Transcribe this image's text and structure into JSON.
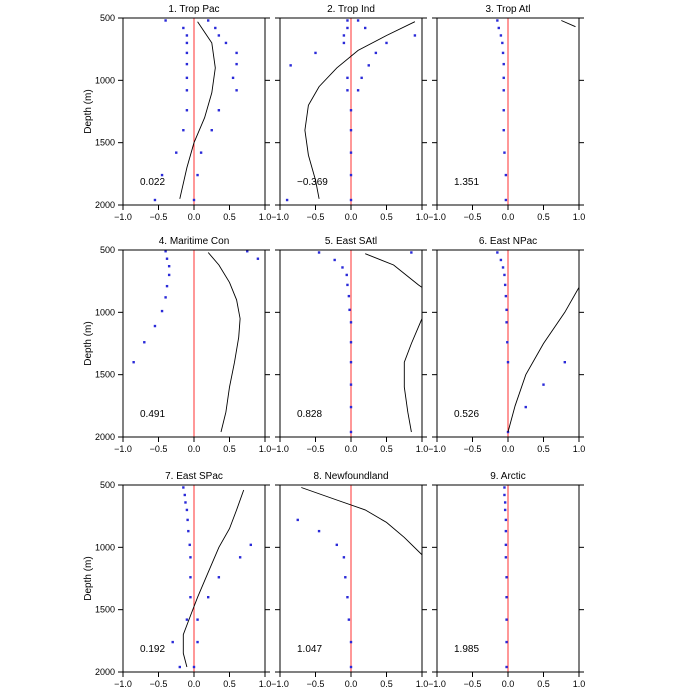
{
  "ylabel": "Depth (m)",
  "chart_data": [
    {
      "type": "scatter",
      "title": "1. Trop Pac",
      "annotation": "0.022",
      "xlim": [
        -1.0,
        1.0
      ],
      "ylim": [
        2000,
        500
      ],
      "x_ticks": [
        "−1.0",
        "−0.5",
        "0.0",
        "0.5",
        "1.0"
      ],
      "y_ticks": [
        "500",
        "1000",
        "1500",
        "2000"
      ],
      "points": [
        [
          -0.4,
          520
        ],
        [
          0.2,
          520
        ],
        [
          -0.15,
          580
        ],
        [
          0.3,
          580
        ],
        [
          -0.1,
          640
        ],
        [
          0.35,
          640
        ],
        [
          -0.1,
          700
        ],
        [
          0.45,
          700
        ],
        [
          -0.1,
          780
        ],
        [
          0.6,
          780
        ],
        [
          -0.1,
          870
        ],
        [
          0.6,
          870
        ],
        [
          -0.1,
          980
        ],
        [
          0.55,
          980
        ],
        [
          -0.1,
          1080
        ],
        [
          0.6,
          1080
        ],
        [
          -0.1,
          1240
        ],
        [
          0.35,
          1240
        ],
        [
          -0.15,
          1400
        ],
        [
          0.25,
          1400
        ],
        [
          -0.25,
          1580
        ],
        [
          0.1,
          1580
        ],
        [
          -0.45,
          1760
        ],
        [
          0.05,
          1760
        ],
        [
          -0.55,
          1960
        ],
        [
          0.0,
          1960
        ]
      ],
      "line": [
        [
          0.05,
          530
        ],
        [
          0.25,
          700
        ],
        [
          0.3,
          900
        ],
        [
          0.25,
          1100
        ],
        [
          0.15,
          1300
        ],
        [
          0.0,
          1500
        ],
        [
          -0.1,
          1700
        ],
        [
          -0.2,
          1950
        ]
      ]
    },
    {
      "type": "scatter",
      "title": "2. Trop Ind",
      "annotation": "−0.369",
      "xlim": [
        -1.0,
        1.0
      ],
      "ylim": [
        2000,
        500
      ],
      "x_ticks": [
        "−1.0",
        "−0.5",
        "0.0",
        "0.5",
        "1.0"
      ],
      "y_ticks": [],
      "points": [
        [
          -0.05,
          520
        ],
        [
          0.1,
          520
        ],
        [
          -0.05,
          580
        ],
        [
          0.2,
          580
        ],
        [
          -0.1,
          640
        ],
        [
          0.9,
          640
        ],
        [
          -0.1,
          700
        ],
        [
          0.5,
          700
        ],
        [
          -0.5,
          780
        ],
        [
          0.35,
          780
        ],
        [
          -0.85,
          880
        ],
        [
          0.25,
          880
        ],
        [
          -0.05,
          980
        ],
        [
          0.15,
          980
        ],
        [
          -0.05,
          1080
        ],
        [
          0.1,
          1080
        ],
        [
          0.0,
          1240
        ],
        [
          0.0,
          1400
        ],
        [
          0.0,
          1580
        ],
        [
          0.0,
          1760
        ],
        [
          -0.9,
          1960
        ],
        [
          0.0,
          1960
        ]
      ],
      "line": [
        [
          0.9,
          530
        ],
        [
          0.5,
          640
        ],
        [
          0.1,
          760
        ],
        [
          -0.2,
          900
        ],
        [
          -0.45,
          1050
        ],
        [
          -0.6,
          1200
        ],
        [
          -0.65,
          1400
        ],
        [
          -0.6,
          1600
        ],
        [
          -0.5,
          1800
        ],
        [
          -0.45,
          1950
        ]
      ]
    },
    {
      "type": "scatter",
      "title": "3. Trop Atl",
      "annotation": "1.351",
      "xlim": [
        -1.0,
        1.0
      ],
      "ylim": [
        2000,
        500
      ],
      "x_ticks": [
        "−1.0",
        "−0.5",
        "0.0",
        "0.5",
        "1.0"
      ],
      "y_ticks": [],
      "points": [
        [
          -0.15,
          520
        ],
        [
          -0.13,
          580
        ],
        [
          -0.1,
          640
        ],
        [
          -0.08,
          700
        ],
        [
          -0.07,
          780
        ],
        [
          -0.06,
          870
        ],
        [
          -0.06,
          980
        ],
        [
          -0.06,
          1080
        ],
        [
          -0.06,
          1240
        ],
        [
          -0.06,
          1400
        ],
        [
          -0.05,
          1580
        ],
        [
          -0.03,
          1760
        ],
        [
          -0.03,
          1960
        ]
      ],
      "line": [
        [
          0.75,
          520
        ],
        [
          0.95,
          570
        ]
      ]
    },
    {
      "type": "scatter",
      "title": "4. Maritime Con",
      "annotation": "0.491",
      "xlim": [
        -1.0,
        1.0
      ],
      "ylim": [
        2000,
        500
      ],
      "x_ticks": [
        "−1.0",
        "−0.5",
        "0.0",
        "0.5",
        "1.0"
      ],
      "y_ticks": [
        "500",
        "1000",
        "1500",
        "2000"
      ],
      "points": [
        [
          -0.4,
          510
        ],
        [
          0.75,
          510
        ],
        [
          -0.38,
          570
        ],
        [
          0.9,
          570
        ],
        [
          -0.35,
          630
        ],
        [
          -0.35,
          700
        ],
        [
          -0.38,
          790
        ],
        [
          -0.4,
          880
        ],
        [
          -0.45,
          990
        ],
        [
          -0.55,
          1110
        ],
        [
          -0.7,
          1240
        ],
        [
          -0.85,
          1400
        ]
      ],
      "line": [
        [
          0.2,
          520
        ],
        [
          0.35,
          620
        ],
        [
          0.5,
          760
        ],
        [
          0.6,
          900
        ],
        [
          0.65,
          1050
        ],
        [
          0.63,
          1200
        ],
        [
          0.57,
          1400
        ],
        [
          0.5,
          1600
        ],
        [
          0.45,
          1800
        ],
        [
          0.38,
          1960
        ]
      ]
    },
    {
      "type": "scatter",
      "title": "5. East SAtl",
      "annotation": "0.828",
      "xlim": [
        -1.0,
        1.0
      ],
      "ylim": [
        2000,
        500
      ],
      "x_ticks": [
        "−1.0",
        "−0.5",
        "0.0",
        "0.5",
        "1.0"
      ],
      "y_ticks": [],
      "points": [
        [
          -0.45,
          520
        ],
        [
          0.85,
          520
        ],
        [
          -0.23,
          580
        ],
        [
          -0.12,
          640
        ],
        [
          -0.06,
          700
        ],
        [
          -0.05,
          780
        ],
        [
          -0.03,
          870
        ],
        [
          -0.02,
          980
        ],
        [
          0.0,
          1080
        ],
        [
          0.0,
          1240
        ],
        [
          0.0,
          1400
        ],
        [
          0.0,
          1580
        ],
        [
          0.0,
          1760
        ],
        [
          0.0,
          1960
        ]
      ],
      "line": [
        [
          0.2,
          530
        ],
        [
          0.6,
          620
        ],
        [
          0.95,
          780
        ],
        [
          1.0,
          800
        ],
        [
          1.0,
          1050
        ],
        [
          0.85,
          1250
        ],
        [
          0.75,
          1400
        ],
        [
          0.75,
          1600
        ],
        [
          0.8,
          1800
        ],
        [
          0.85,
          1960
        ]
      ]
    },
    {
      "type": "scatter",
      "title": "6. East NPac",
      "annotation": "0.526",
      "xlim": [
        -1.0,
        1.0
      ],
      "ylim": [
        2000,
        500
      ],
      "x_ticks": [
        "−1.0",
        "−0.5",
        "0.0",
        "0.5",
        "1.0"
      ],
      "y_ticks": [],
      "points": [
        [
          -0.15,
          520
        ],
        [
          -0.1,
          580
        ],
        [
          -0.07,
          640
        ],
        [
          -0.05,
          700
        ],
        [
          -0.04,
          780
        ],
        [
          -0.03,
          870
        ],
        [
          -0.02,
          980
        ],
        [
          -0.02,
          1080
        ],
        [
          -0.01,
          1240
        ],
        [
          0.0,
          1400
        ],
        [
          0.8,
          1400
        ],
        [
          0.5,
          1580
        ],
        [
          0.25,
          1760
        ],
        [
          0.0,
          1960
        ]
      ],
      "line": [
        [
          1.0,
          800
        ],
        [
          0.8,
          1000
        ],
        [
          0.5,
          1250
        ],
        [
          0.25,
          1500
        ],
        [
          0.1,
          1750
        ],
        [
          0.0,
          1960
        ]
      ]
    },
    {
      "type": "scatter",
      "title": "7. East SPac",
      "annotation": "0.192",
      "xlim": [
        -1.0,
        1.0
      ],
      "ylim": [
        2000,
        500
      ],
      "x_ticks": [
        "−1.0",
        "−0.5",
        "0.0",
        "0.5",
        "1.0"
      ],
      "y_ticks": [
        "500",
        "1000",
        "1500",
        "2000"
      ],
      "points": [
        [
          -0.15,
          520
        ],
        [
          -0.13,
          580
        ],
        [
          -0.12,
          640
        ],
        [
          -0.1,
          700
        ],
        [
          -0.09,
          780
        ],
        [
          -0.08,
          870
        ],
        [
          -0.06,
          980
        ],
        [
          0.8,
          980
        ],
        [
          -0.05,
          1080
        ],
        [
          0.65,
          1080
        ],
        [
          -0.05,
          1240
        ],
        [
          0.35,
          1240
        ],
        [
          -0.05,
          1400
        ],
        [
          0.2,
          1400
        ],
        [
          -0.1,
          1580
        ],
        [
          0.05,
          1580
        ],
        [
          -0.3,
          1760
        ],
        [
          0.05,
          1760
        ],
        [
          -0.2,
          1960
        ],
        [
          0.0,
          1960
        ]
      ],
      "line": [
        [
          0.7,
          540
        ],
        [
          0.6,
          700
        ],
        [
          0.5,
          850
        ],
        [
          0.35,
          1000
        ],
        [
          0.2,
          1200
        ],
        [
          0.05,
          1400
        ],
        [
          -0.05,
          1550
        ],
        [
          -0.15,
          1700
        ],
        [
          -0.15,
          1850
        ],
        [
          -0.1,
          1960
        ]
      ]
    },
    {
      "type": "scatter",
      "title": "8. Newfoundland",
      "annotation": "1.047",
      "xlim": [
        -1.0,
        1.0
      ],
      "ylim": [
        2000,
        500
      ],
      "x_ticks": [
        "−1.0",
        "−0.5",
        "0.0",
        "0.5",
        "1.0"
      ],
      "y_ticks": [],
      "points": [
        [
          -0.75,
          780
        ],
        [
          -0.45,
          870
        ],
        [
          -0.2,
          980
        ],
        [
          -0.1,
          1080
        ],
        [
          -0.08,
          1240
        ],
        [
          -0.05,
          1400
        ],
        [
          -0.03,
          1580
        ],
        [
          0.0,
          1760
        ],
        [
          0.0,
          1960
        ]
      ],
      "line": [
        [
          -0.7,
          520
        ],
        [
          -0.2,
          620
        ],
        [
          0.2,
          700
        ],
        [
          0.5,
          800
        ],
        [
          0.75,
          920
        ],
        [
          1.0,
          1060
        ]
      ]
    },
    {
      "type": "scatter",
      "title": "9. Arctic",
      "annotation": "1.985",
      "xlim": [
        -1.0,
        1.0
      ],
      "ylim": [
        2000,
        500
      ],
      "x_ticks": [
        "−1.0",
        "−0.5",
        "0.0",
        "0.5",
        "1.0"
      ],
      "y_ticks": [],
      "points": [
        [
          -0.05,
          520
        ],
        [
          -0.05,
          580
        ],
        [
          -0.04,
          640
        ],
        [
          -0.04,
          700
        ],
        [
          -0.03,
          780
        ],
        [
          -0.03,
          870
        ],
        [
          -0.03,
          980
        ],
        [
          -0.03,
          1080
        ],
        [
          -0.02,
          1240
        ],
        [
          -0.02,
          1400
        ],
        [
          -0.02,
          1580
        ],
        [
          -0.02,
          1760
        ],
        [
          -0.02,
          1960
        ]
      ],
      "line": []
    }
  ],
  "colors": {
    "points": "#2a2ad8",
    "zero_line": "#ff3030",
    "curve": "#000000",
    "axis": "#000000"
  }
}
